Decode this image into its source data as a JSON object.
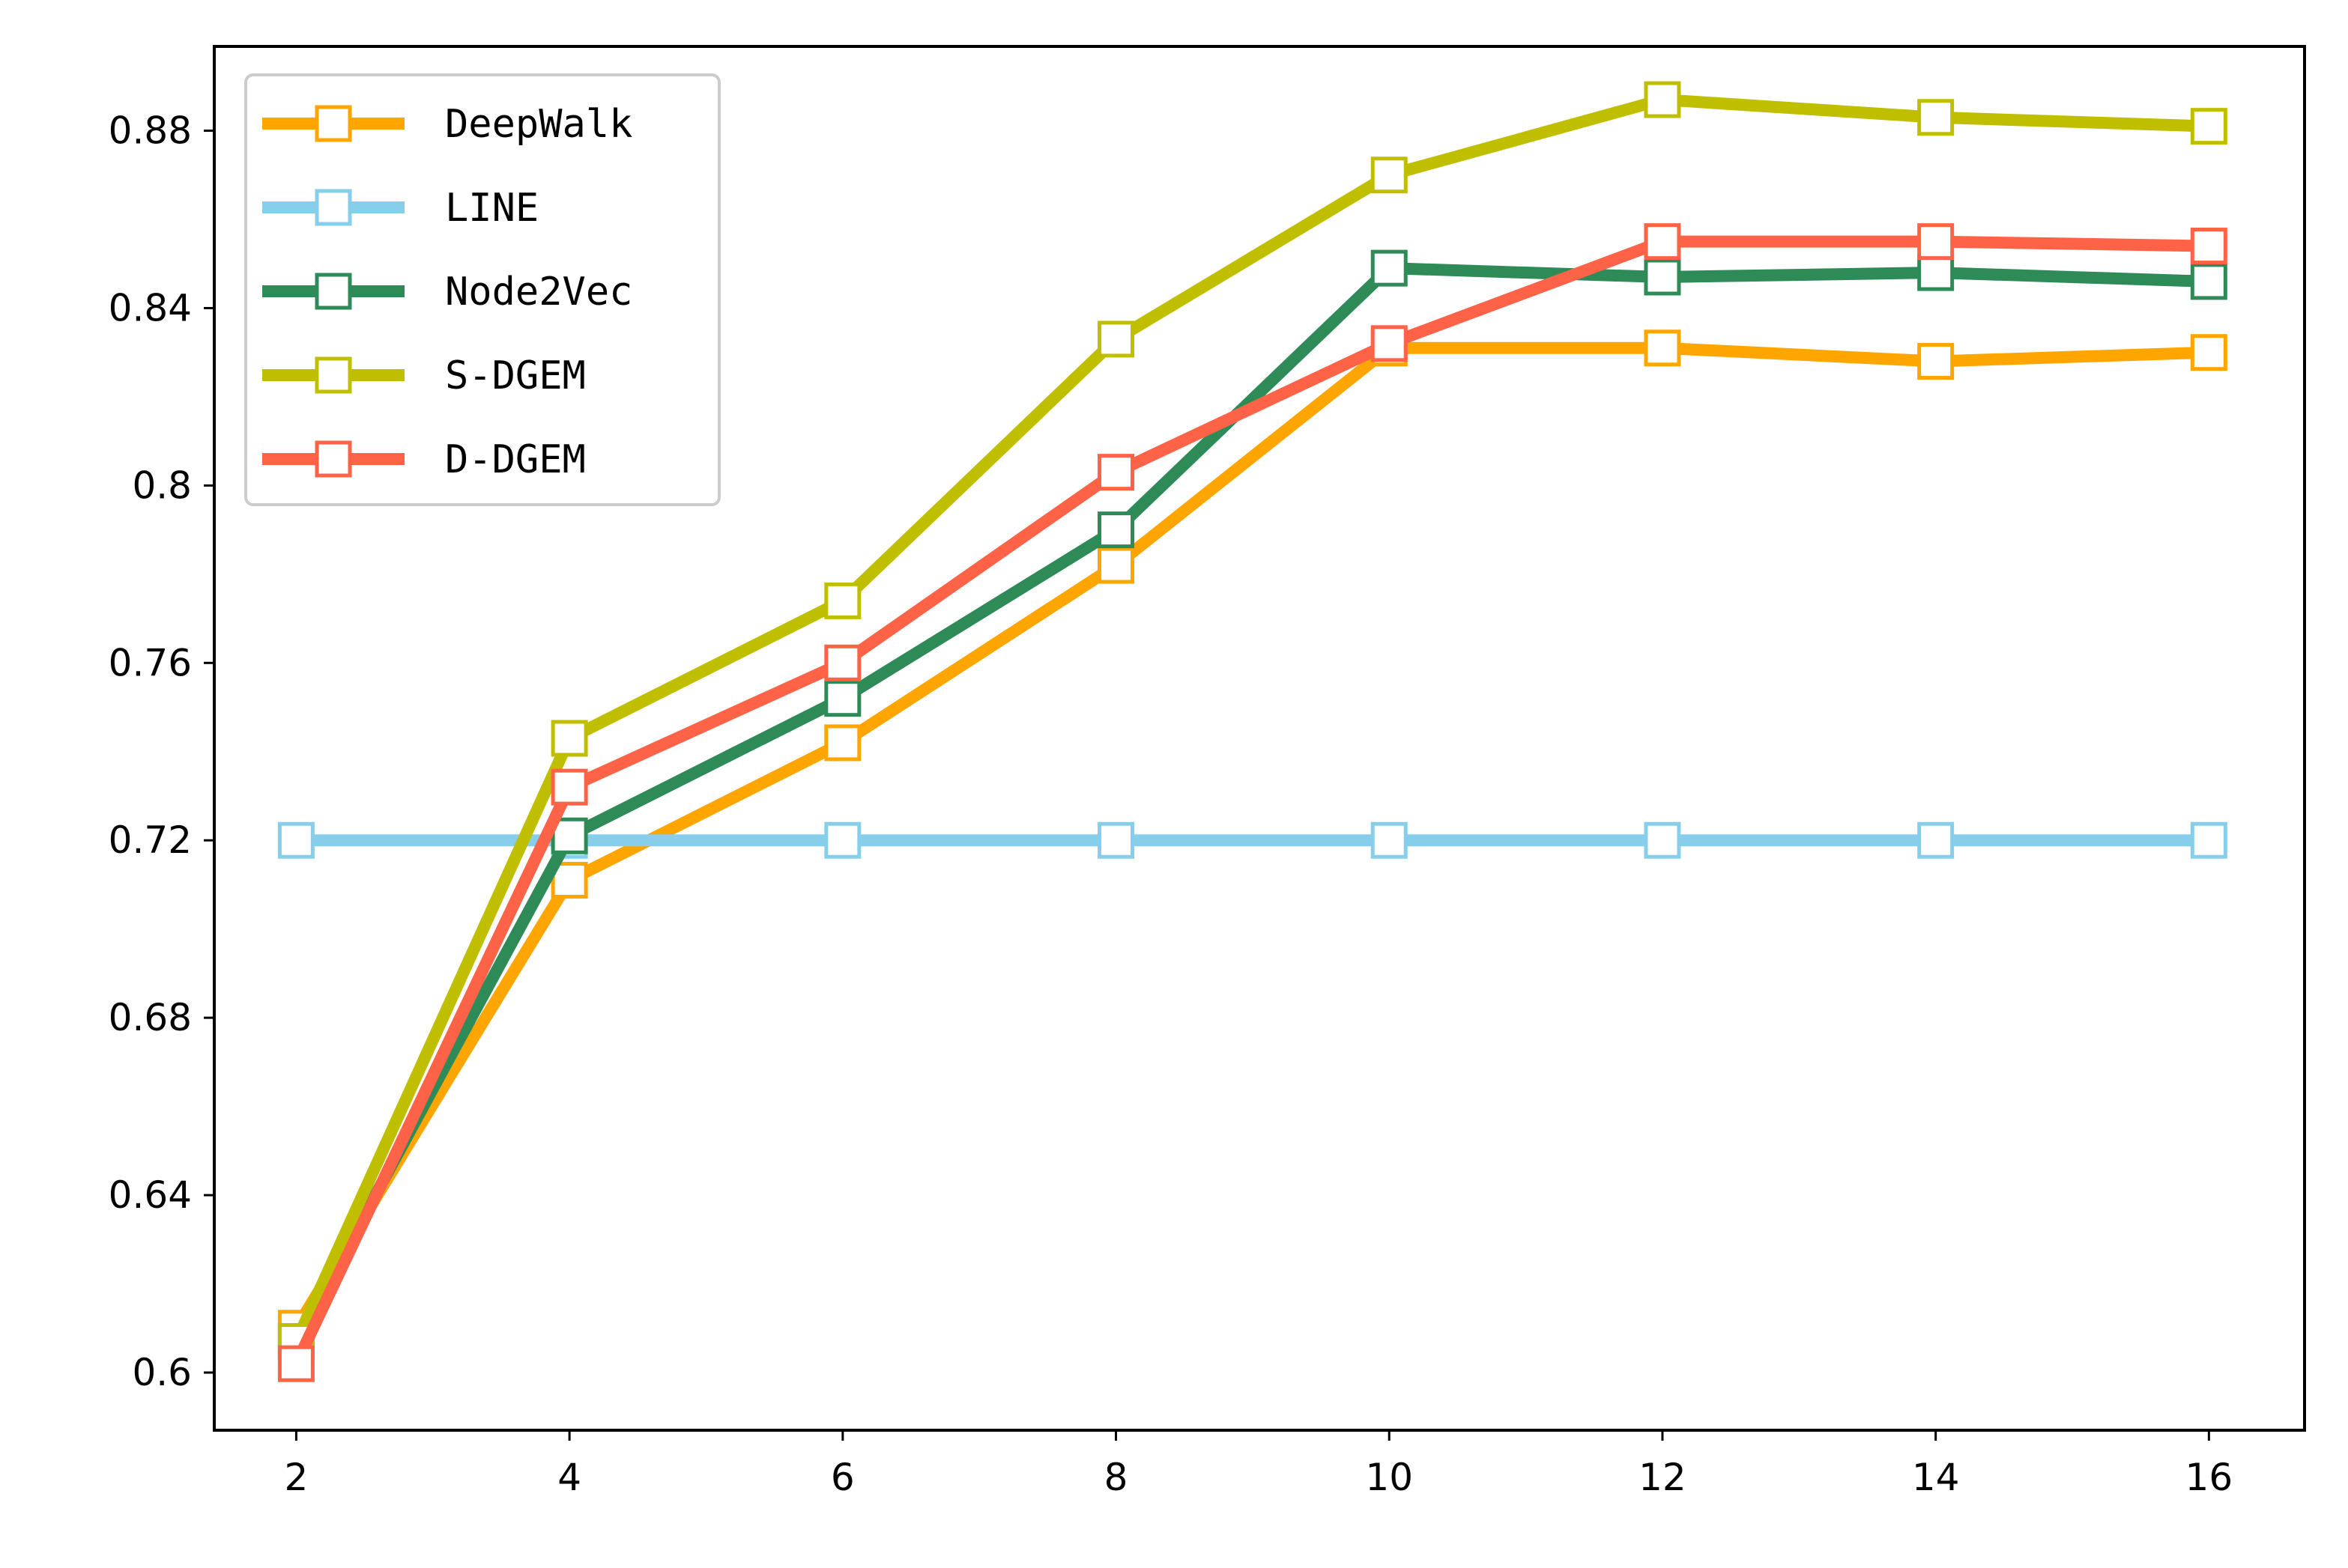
{
  "chart_data": {
    "type": "line",
    "title": "",
    "xlabel": "",
    "ylabel": "",
    "x": [
      2,
      4,
      6,
      8,
      10,
      12,
      14,
      16
    ],
    "xticks": [
      "2",
      "4",
      "6",
      "8",
      "10",
      "12",
      "14",
      "16"
    ],
    "yticks": [
      "0.6",
      "0.64",
      "0.68",
      "0.72",
      "0.76",
      "0.8",
      "0.84",
      "0.88"
    ],
    "ytick_values": [
      0.6,
      0.64,
      0.68,
      0.72,
      0.76,
      0.8,
      0.84,
      0.88
    ],
    "xlim": [
      1.4,
      16.7
    ],
    "ylim": [
      0.587,
      0.899
    ],
    "grid": false,
    "legend_position": "upper-left",
    "marker": "open-square",
    "series": [
      {
        "name": "DeepWalk",
        "color": "#FFA500",
        "values": [
          0.61,
          0.711,
          0.742,
          0.782,
          0.831,
          0.831,
          0.828,
          0.83
        ]
      },
      {
        "name": "LINE",
        "color": "#87CEEB",
        "values": [
          0.72,
          0.72,
          0.72,
          0.72,
          0.72,
          0.72,
          0.72,
          0.72
        ]
      },
      {
        "name": "Node2Vec",
        "color": "#2E8B57",
        "values": [
          0.607,
          0.721,
          0.752,
          0.79,
          0.849,
          0.847,
          0.848,
          0.846
        ]
      },
      {
        "name": "S-DGEM",
        "color": "#BFBF00",
        "values": [
          0.607,
          0.743,
          0.774,
          0.833,
          0.87,
          0.887,
          0.883,
          0.881
        ]
      },
      {
        "name": "D-DGEM",
        "color": "#FF6347",
        "values": [
          0.602,
          0.732,
          0.76,
          0.803,
          0.832,
          0.855,
          0.855,
          0.854
        ]
      }
    ]
  }
}
